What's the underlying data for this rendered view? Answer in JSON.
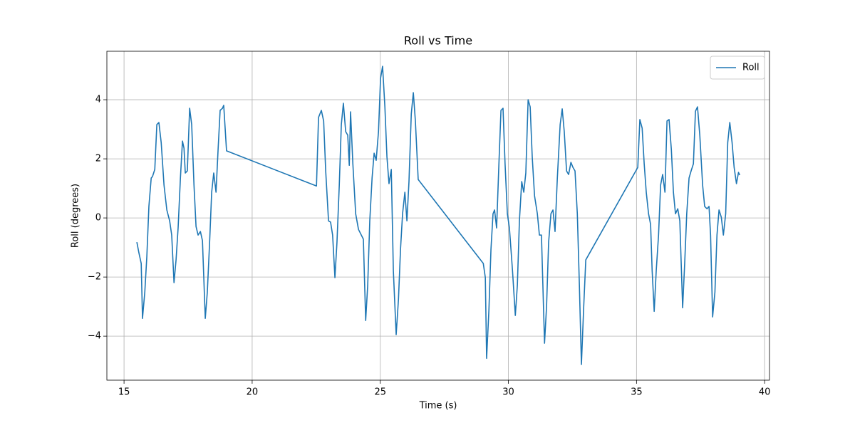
{
  "chart_data": {
    "type": "line",
    "title": "Roll vs Time",
    "xlabel": "Time (s)",
    "ylabel": "Roll (degrees)",
    "x": [
      15.5,
      15.58,
      15.67,
      15.72,
      15.81,
      15.89,
      15.97,
      16.06,
      16.11,
      16.2,
      16.28,
      16.36,
      16.45,
      16.56,
      16.67,
      16.78,
      16.86,
      16.95,
      17.03,
      17.11,
      17.2,
      17.28,
      17.34,
      17.39,
      17.47,
      17.56,
      17.64,
      17.73,
      17.81,
      17.89,
      17.98,
      18.06,
      18.17,
      18.25,
      18.34,
      18.42,
      18.5,
      18.59,
      18.67,
      18.75,
      18.84,
      18.89,
      19.0,
      22.51,
      22.59,
      22.7,
      22.79,
      22.87,
      22.98,
      23.06,
      23.14,
      23.23,
      23.31,
      23.4,
      23.48,
      23.56,
      23.65,
      23.73,
      23.79,
      23.84,
      23.93,
      24.04,
      24.15,
      24.26,
      24.34,
      24.43,
      24.51,
      24.59,
      24.68,
      24.76,
      24.84,
      24.93,
      25.01,
      25.09,
      25.18,
      25.26,
      25.34,
      25.43,
      25.51,
      25.62,
      25.71,
      25.79,
      25.87,
      25.96,
      26.04,
      26.12,
      26.21,
      26.29,
      26.37,
      26.48,
      29.02,
      29.1,
      29.15,
      29.24,
      29.32,
      29.4,
      29.46,
      29.54,
      29.63,
      29.71,
      29.79,
      29.87,
      29.96,
      30.04,
      30.16,
      30.27,
      30.35,
      30.43,
      30.52,
      30.6,
      30.68,
      30.77,
      30.85,
      30.93,
      31.02,
      31.13,
      31.21,
      31.29,
      31.41,
      31.49,
      31.57,
      31.66,
      31.74,
      31.82,
      31.91,
      32.02,
      32.1,
      32.18,
      32.27,
      32.35,
      32.44,
      32.52,
      32.6,
      32.69,
      32.77,
      32.85,
      32.94,
      33.02,
      35.05,
      35.13,
      35.22,
      35.3,
      35.38,
      35.47,
      35.55,
      35.61,
      35.69,
      35.77,
      35.86,
      35.94,
      36.02,
      36.11,
      36.19,
      36.27,
      36.36,
      36.44,
      36.52,
      36.61,
      36.69,
      36.8,
      36.88,
      36.96,
      37.05,
      37.13,
      37.22,
      37.3,
      37.38,
      37.47,
      37.58,
      37.66,
      37.75,
      37.83,
      37.89,
      37.97,
      38.06,
      38.14,
      38.22,
      38.31,
      38.39,
      38.48,
      38.56,
      38.64,
      38.73,
      38.81,
      38.9,
      38.98,
      39.03
    ],
    "series": [
      {
        "name": "Roll",
        "color": "#1f77b4",
        "values": [
          -0.82,
          -1.18,
          -1.54,
          -3.4,
          -2.51,
          -1.3,
          0.39,
          1.35,
          1.4,
          1.64,
          3.16,
          3.23,
          2.55,
          1.11,
          0.27,
          -0.1,
          -0.58,
          -2.19,
          -1.42,
          -0.34,
          1.35,
          2.6,
          2.36,
          1.52,
          1.59,
          3.71,
          3.16,
          1.11,
          -0.29,
          -0.58,
          -0.46,
          -0.77,
          -3.4,
          -2.51,
          -0.82,
          0.87,
          1.52,
          0.87,
          2.31,
          3.64,
          3.71,
          3.81,
          2.27,
          1.08,
          3.4,
          3.64,
          3.28,
          1.59,
          -0.1,
          -0.14,
          -0.58,
          -2.02,
          -0.82,
          1.11,
          3.16,
          3.88,
          2.92,
          2.8,
          1.78,
          3.59,
          1.83,
          0.14,
          -0.39,
          -0.58,
          -0.72,
          -3.47,
          -2.27,
          -0.1,
          1.35,
          2.19,
          1.95,
          2.92,
          4.72,
          5.13,
          3.76,
          2.07,
          1.16,
          1.64,
          -1.78,
          -3.95,
          -2.75,
          -1.06,
          0.14,
          0.87,
          -0.1,
          1.23,
          3.52,
          4.24,
          3.28,
          1.3,
          -1.54,
          -2.02,
          -4.75,
          -3.11,
          -1.06,
          0.14,
          0.27,
          -0.34,
          1.83,
          3.64,
          3.71,
          1.83,
          0.14,
          -0.34,
          -1.78,
          -3.3,
          -2.27,
          -0.1,
          1.23,
          0.87,
          1.52,
          4.0,
          3.76,
          2.07,
          0.75,
          0.14,
          -0.58,
          -0.58,
          -4.24,
          -2.99,
          -0.82,
          0.14,
          0.27,
          -0.46,
          1.35,
          3.16,
          3.69,
          2.92,
          1.59,
          1.47,
          1.88,
          1.71,
          1.59,
          0.14,
          -2.27,
          -4.96,
          -2.99,
          -1.42,
          1.71,
          3.33,
          3.04,
          1.83,
          0.87,
          0.14,
          -0.22,
          -1.78,
          -3.16,
          -1.78,
          -0.58,
          1.11,
          1.47,
          0.87,
          3.28,
          3.33,
          2.31,
          0.87,
          0.14,
          0.31,
          -0.1,
          -3.04,
          -1.54,
          0.14,
          1.35,
          1.59,
          1.83,
          3.61,
          3.76,
          2.8,
          1.11,
          0.39,
          0.31,
          0.39,
          -0.58,
          -3.35,
          -2.51,
          -0.58,
          0.27,
          0.02,
          -0.58,
          0.14,
          2.55,
          3.23,
          2.55,
          1.71,
          1.16,
          1.54,
          1.45
        ]
      }
    ],
    "xlim": [
      14.33,
      40.19
    ],
    "ylim": [
      -5.49,
      5.64
    ],
    "xticks": [
      15,
      20,
      25,
      30,
      35,
      40
    ],
    "yticks": [
      {
        "value": -4,
        "label": "−4"
      },
      {
        "value": -2,
        "label": "−2"
      },
      0,
      2,
      4
    ],
    "grid": true,
    "legend": "upper right"
  }
}
